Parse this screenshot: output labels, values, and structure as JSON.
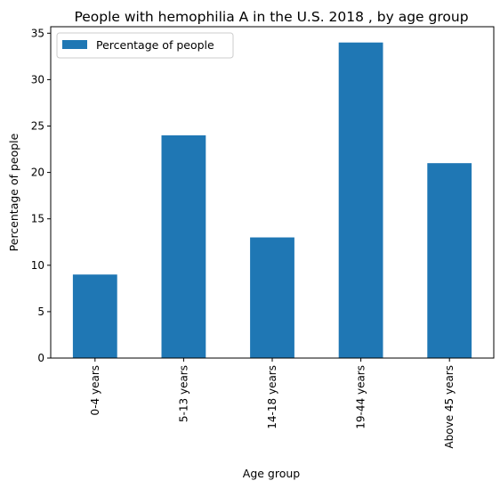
{
  "chart_data": {
    "type": "bar",
    "title": "People with hemophilia A in the U.S. 2018 , by age group",
    "xlabel": "Age group",
    "ylabel": "Percentage of people",
    "categories": [
      "0-4 years",
      "5-13 years",
      "14-18 years",
      "19-44 years",
      "Above 45 years"
    ],
    "series": [
      {
        "name": "Percentage of people",
        "values": [
          9,
          24,
          13,
          34,
          21
        ],
        "color": "#1f77b4"
      }
    ],
    "ylim": [
      0,
      35.7
    ],
    "yticks": [
      0,
      5,
      10,
      15,
      20,
      25,
      30,
      35
    ],
    "grid": false,
    "legend_position": "top-left"
  }
}
